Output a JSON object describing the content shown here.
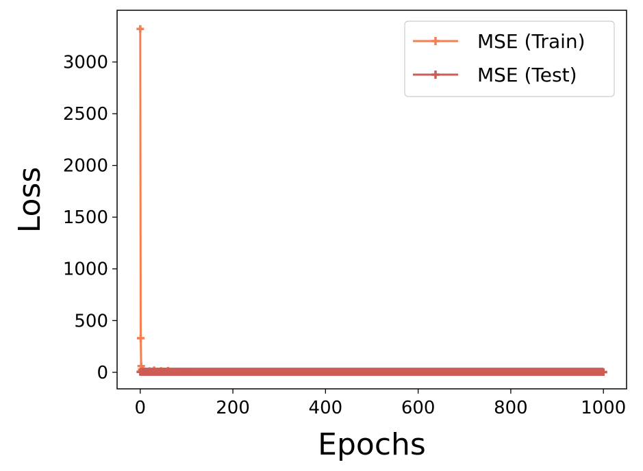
{
  "chart_data": {
    "type": "line",
    "title": "",
    "xlabel": "Epochs",
    "ylabel": "Loss",
    "xlim": [
      -50,
      1050
    ],
    "ylim": [
      -160,
      3500
    ],
    "xticks": [
      0,
      200,
      400,
      600,
      800,
      1000
    ],
    "yticks": [
      0,
      500,
      1000,
      1500,
      2000,
      2500,
      3000
    ],
    "grid": false,
    "legend_position": "top-right",
    "series": [
      {
        "name": "MSE (Train)",
        "color": "#f57f4f",
        "marker": "plus",
        "x": [
          0,
          1,
          2,
          3,
          5,
          8,
          12,
          20,
          30,
          45,
          60,
          80,
          100,
          150,
          200,
          300,
          400,
          500,
          600,
          700,
          800,
          900,
          1000
        ],
        "y": [
          3320,
          330,
          60,
          25,
          15,
          10,
          8,
          12,
          20,
          14,
          16,
          9,
          6,
          5,
          4,
          4,
          3,
          3,
          3,
          3,
          2,
          2,
          2
        ]
      },
      {
        "name": "MSE (Test)",
        "color": "#cd5c57",
        "marker": "plus",
        "x": [
          0,
          1,
          2,
          5,
          10,
          20,
          50,
          100,
          200,
          300,
          400,
          500,
          600,
          700,
          800,
          900,
          1000
        ],
        "y": [
          5,
          4,
          4,
          3,
          3,
          3,
          3,
          2,
          2,
          2,
          2,
          2,
          2,
          2,
          2,
          2,
          2
        ]
      }
    ]
  }
}
